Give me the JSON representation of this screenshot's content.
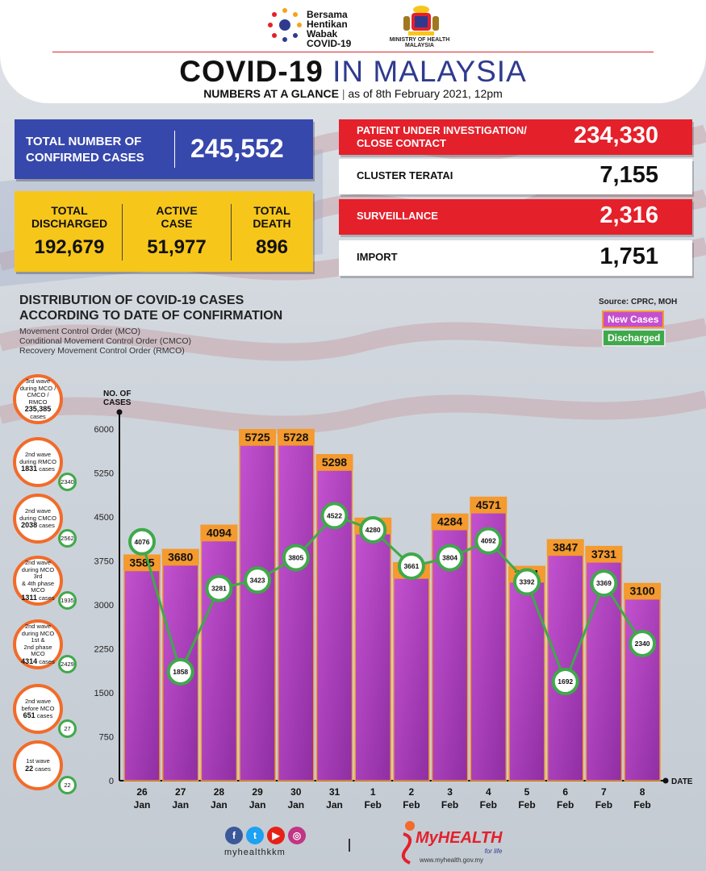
{
  "header": {
    "campaign": [
      "Bersama",
      "Hentikan",
      "Wabak",
      "COVID-19"
    ],
    "ministry": [
      "MINISTRY OF HEALTH",
      "MALAYSIA"
    ],
    "title_bold": "COVID-19",
    "title_light": "IN MALAYSIA",
    "subtitle_bold": "NUMBERS AT A GLANCE",
    "subtitle_date": "as of 8th February 2021, 12pm"
  },
  "summary": {
    "confirmed_label": [
      "TOTAL NUMBER OF",
      "CONFIRMED CASES"
    ],
    "confirmed_value": "245,552",
    "discharged_label": [
      "TOTAL",
      "DISCHARGED"
    ],
    "discharged_value": "192,679",
    "active_label": [
      "ACTIVE",
      "CASE"
    ],
    "active_value": "51,977",
    "death_label": [
      "TOTAL",
      "DEATH"
    ],
    "death_value": "896"
  },
  "right_stats": [
    {
      "label": [
        "PATIENT UNDER INVESTIGATION/",
        "CLOSE CONTACT"
      ],
      "value": "234,330"
    },
    {
      "label": [
        "CLUSTER TERATAI"
      ],
      "value": "7,155"
    },
    {
      "label": [
        "SURVEILLANCE"
      ],
      "value": "2,316"
    },
    {
      "label": [
        "IMPORT"
      ],
      "value": "1,751"
    }
  ],
  "distribution": {
    "title": [
      "DISTRIBUTION OF COVID-19 CASES",
      "ACCORDING TO DATE OF CONFIRMATION"
    ],
    "notes": [
      "Movement Control Order (MCO)",
      "Conditional Movement Control Order (CMCO)",
      "Recovery Movement Control Order (RMCO)"
    ],
    "source": "Source: CPRC, MOH"
  },
  "waves": [
    {
      "text": [
        "3rd wave",
        "during MCO /",
        "CMCO / RMCO"
      ],
      "cases": "235,385",
      "suffix": "cases",
      "discharged": null
    },
    {
      "text": [
        "2nd wave",
        "during RMCO"
      ],
      "cases": "1831",
      "suffix": "cases",
      "discharged": "2340"
    },
    {
      "text": [
        "2nd wave",
        "during CMCO"
      ],
      "cases": "2038",
      "suffix": "cases",
      "discharged": "2562"
    },
    {
      "text": [
        "2nd wave",
        "during MCO 3rd",
        "& 4th phase MCO"
      ],
      "cases": "1311",
      "suffix": "cases",
      "discharged": "1935"
    },
    {
      "text": [
        "2nd wave",
        "during MCO 1st &",
        "2nd phase MCO"
      ],
      "cases": "4314",
      "suffix": "cases",
      "discharged": "2429"
    },
    {
      "text": [
        "2nd wave",
        "before MCO"
      ],
      "cases": "651",
      "suffix": "cases",
      "discharged": "27"
    },
    {
      "text": [
        "1st wave"
      ],
      "cases": "22",
      "suffix": "cases",
      "discharged": "22"
    }
  ],
  "chart_data": {
    "type": "bar",
    "title": "DISTRIBUTION OF COVID-19 CASES ACCORDING TO DATE OF CONFIRMATION",
    "ylabel": "NO. OF CASES",
    "xlabel": "DATE",
    "ylim": [
      0,
      6000
    ],
    "yticks": [
      0,
      750,
      1500,
      2250,
      3000,
      3750,
      4500,
      5250,
      6000
    ],
    "categories": [
      [
        "26",
        "Jan"
      ],
      [
        "27",
        "Jan"
      ],
      [
        "28",
        "Jan"
      ],
      [
        "29",
        "Jan"
      ],
      [
        "30",
        "Jan"
      ],
      [
        "31",
        "Jan"
      ],
      [
        "1",
        "Feb"
      ],
      [
        "2",
        "Feb"
      ],
      [
        "3",
        "Feb"
      ],
      [
        "4",
        "Feb"
      ],
      [
        "5",
        "Feb"
      ],
      [
        "6",
        "Feb"
      ],
      [
        "7",
        "Feb"
      ],
      [
        "8",
        "Feb"
      ]
    ],
    "series": [
      {
        "name": "New Cases",
        "type": "bar",
        "color": "#a63db5",
        "label_color": "#f49a2e",
        "values": [
          3585,
          3680,
          4094,
          5725,
          5728,
          5298,
          4214,
          3455,
          4284,
          4571,
          3391,
          3847,
          3731,
          3100
        ]
      },
      {
        "name": "Discharged",
        "type": "line",
        "color": "#3fa94a",
        "values": [
          4076,
          1858,
          3281,
          3423,
          3805,
          4522,
          4280,
          3661,
          3804,
          4092,
          3392,
          1692,
          3369,
          2340
        ]
      }
    ]
  },
  "footer": {
    "handle": "myhealthkkm",
    "brand": "MyHEALTH",
    "tagline": "for life",
    "url": "www.myhealth.gov.my"
  }
}
